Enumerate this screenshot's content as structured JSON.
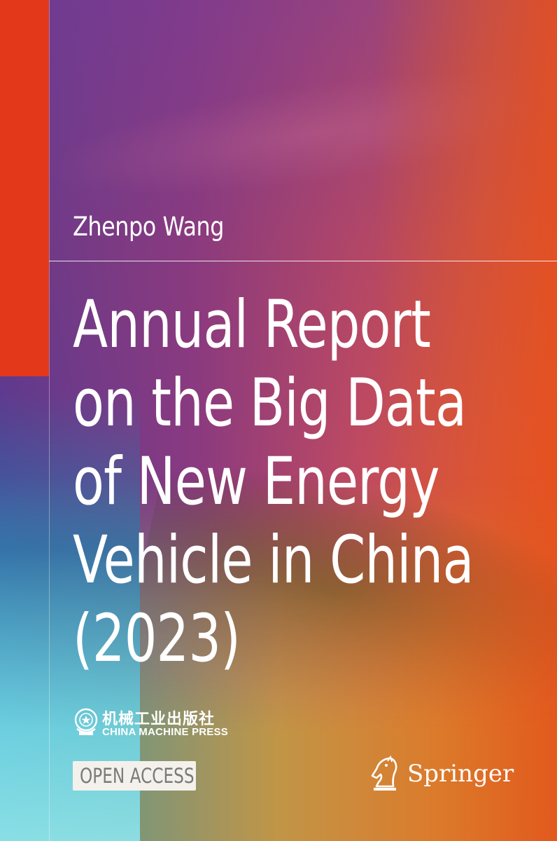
{
  "cover": {
    "author": "Zhenpo Wang",
    "title_lines": [
      "Annual Report",
      "on the Big Data",
      "of New Energy",
      "Vehicle in China",
      "(2023)"
    ],
    "publisher": {
      "name_cn": "机械工业出版社",
      "name_en": "CHINA MACHINE PRESS",
      "logo_icon": "china-machine-press-logo-icon"
    },
    "badge": "OPEN ACCESS",
    "imprint": {
      "name": "Springer",
      "logo_icon": "springer-chess-knight-icon"
    }
  },
  "colors": {
    "red_bar": "#e4381b",
    "title_text": "#ffffff",
    "badge_bg": "#f4f1ec",
    "badge_text": "#7a7a7a"
  }
}
